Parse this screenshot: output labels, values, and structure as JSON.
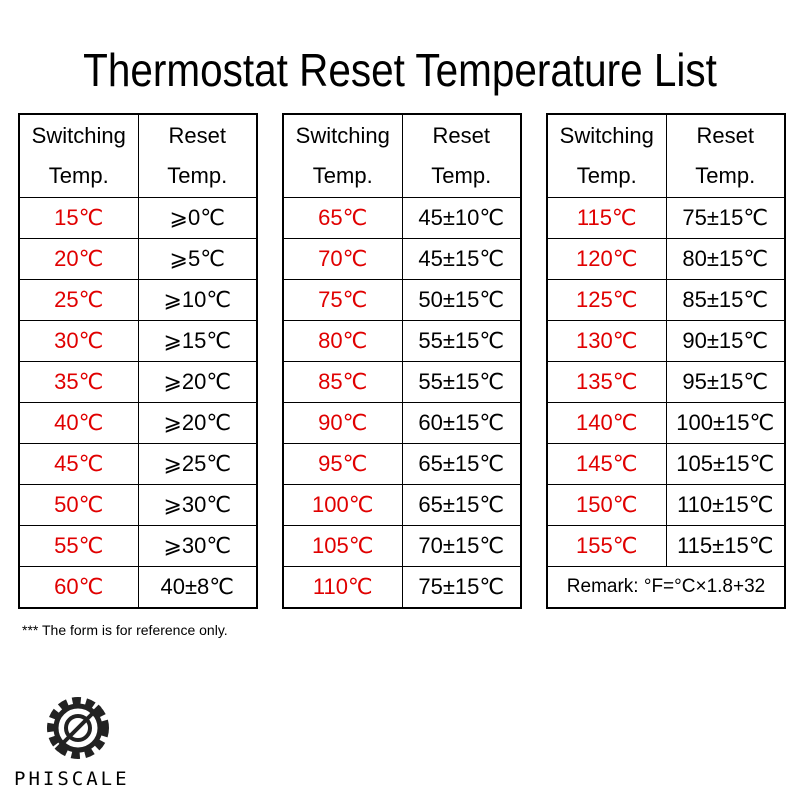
{
  "title": "Thermostat Reset Temperature List",
  "tables": [
    {
      "headers": [
        [
          "Switching",
          "Temp."
        ],
        [
          "Reset",
          "Temp."
        ]
      ],
      "rows": [
        [
          "15℃",
          "⩾0℃"
        ],
        [
          "20℃",
          "⩾5℃"
        ],
        [
          "25℃",
          "⩾10℃"
        ],
        [
          "30℃",
          "⩾15℃"
        ],
        [
          "35℃",
          "⩾20℃"
        ],
        [
          "40℃",
          "⩾20℃"
        ],
        [
          "45℃",
          "⩾25℃"
        ],
        [
          "50℃",
          "⩾30℃"
        ],
        [
          "55℃",
          "⩾30℃"
        ],
        [
          "60℃",
          "40±8℃"
        ]
      ]
    },
    {
      "headers": [
        [
          "Switching",
          "Temp."
        ],
        [
          "Reset",
          "Temp."
        ]
      ],
      "rows": [
        [
          "65℃",
          "45±10℃"
        ],
        [
          "70℃",
          "45±15℃"
        ],
        [
          "75℃",
          "50±15℃"
        ],
        [
          "80℃",
          "55±15℃"
        ],
        [
          "85℃",
          "55±15℃"
        ],
        [
          "90℃",
          "60±15℃"
        ],
        [
          "95℃",
          "65±15℃"
        ],
        [
          "100℃",
          "65±15℃"
        ],
        [
          "105℃",
          "70±15℃"
        ],
        [
          "110℃",
          "75±15℃"
        ]
      ]
    },
    {
      "headers": [
        [
          "Switching",
          "Temp."
        ],
        [
          "Reset",
          "Temp."
        ]
      ],
      "rows": [
        [
          "115℃",
          "75±15℃"
        ],
        [
          "120℃",
          "80±15℃"
        ],
        [
          "125℃",
          "85±15℃"
        ],
        [
          "130℃",
          "90±15℃"
        ],
        [
          "135℃",
          "95±15℃"
        ],
        [
          "140℃",
          "100±15℃"
        ],
        [
          "145℃",
          "105±15℃"
        ],
        [
          "150℃",
          "110±15℃"
        ],
        [
          "155℃",
          "115±15℃"
        ]
      ],
      "remark": "Remark: °F=°C×1.8+32"
    }
  ],
  "footnote": "*** The form is for reference only.",
  "logo": "PHISCALE"
}
